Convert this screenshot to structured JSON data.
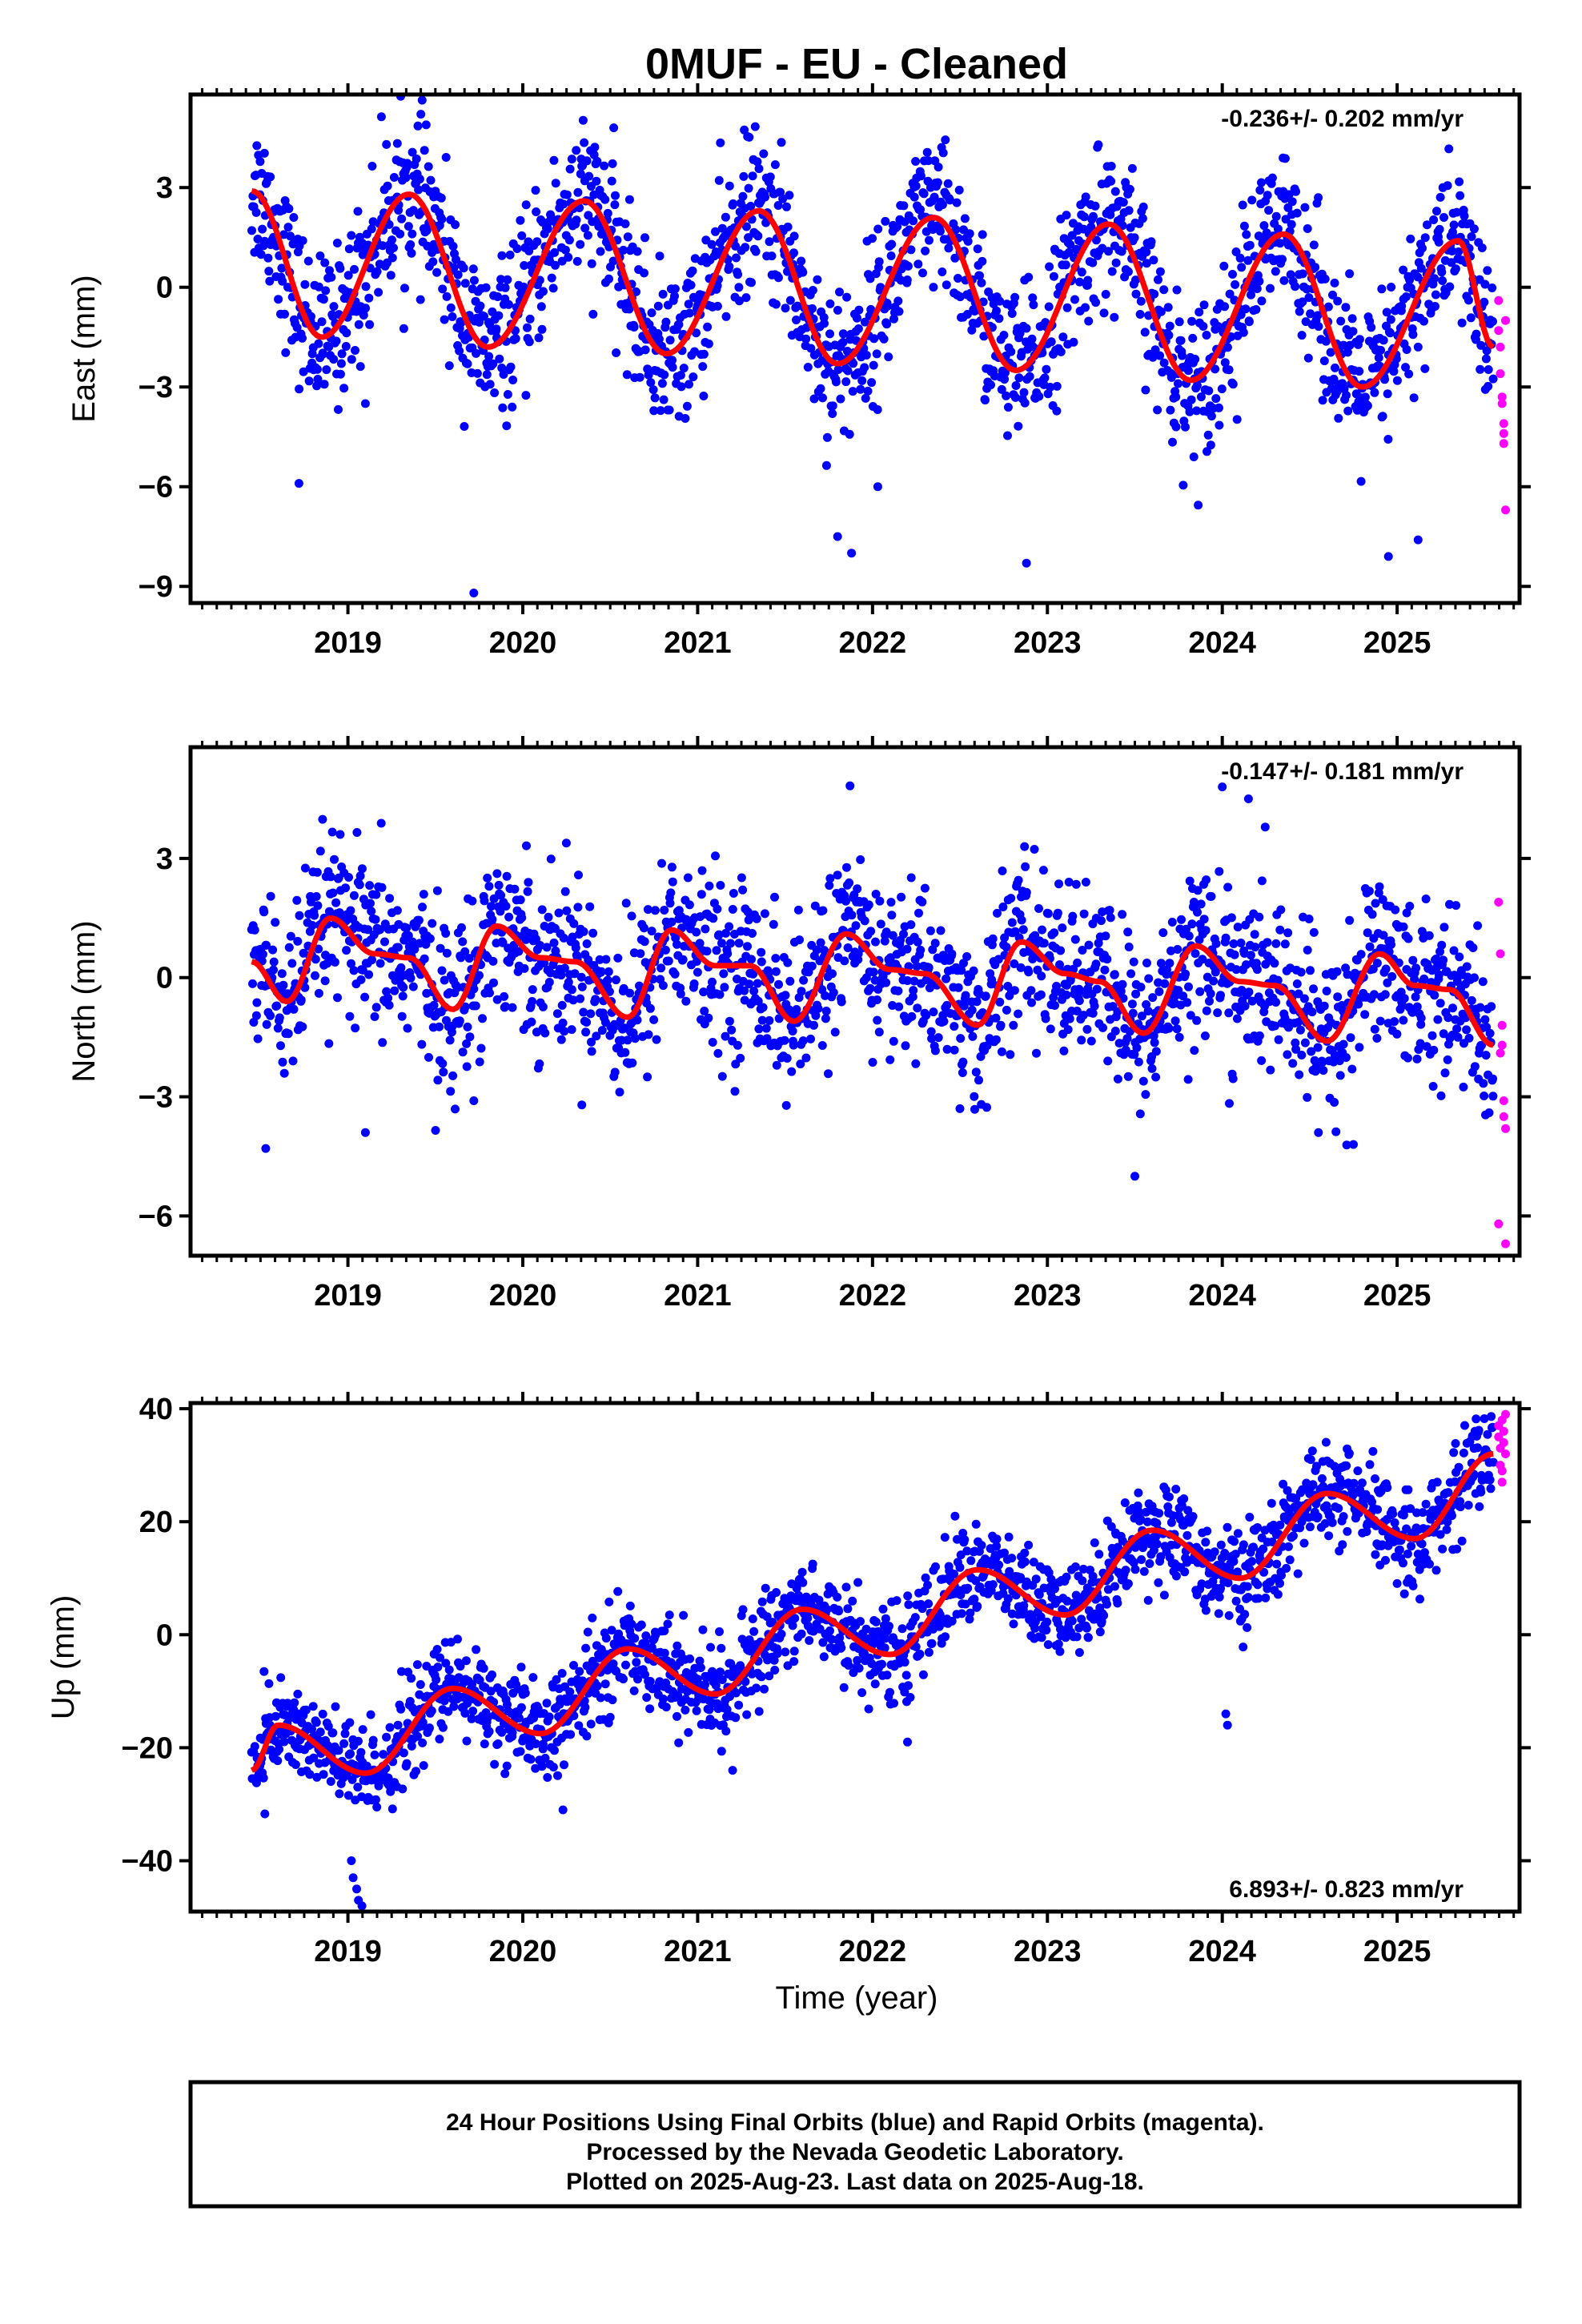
{
  "title": "0MUF  - EU - Cleaned",
  "xlabel": "Time (year)",
  "footer": {
    "line1": "24 Hour Positions Using Final Orbits (blue) and Rapid Orbits (magenta).",
    "line2": "Processed by the Nevada Geodetic Laboratory.",
    "line3": "Plotted on 2025-Aug-23. Last data on 2025-Aug-18."
  },
  "colors": {
    "final": "#0000ff",
    "rapid": "#ff00ff",
    "model": "#ff0000",
    "axes": "#000000"
  },
  "chart_data": [
    {
      "type": "scatter",
      "component": "east",
      "ylabel": "East (mm)",
      "rate": "-0.236+/- 0.202 mm/yr",
      "rate_position": "top-right",
      "xlim": [
        2018.1,
        2025.7
      ],
      "ylim": [
        -9.5,
        5.8
      ],
      "xticks": [
        2019,
        2020,
        2021,
        2022,
        2023,
        2024,
        2025
      ],
      "yticks": [
        -9,
        -6,
        -3,
        0,
        3
      ],
      "ytick_labels": [
        "−9",
        "−6",
        "−3",
        "0",
        "3"
      ],
      "grid": false,
      "data_start": 2018.45,
      "data_end": 2025.55,
      "model": {
        "x": [
          2018.45,
          2018.85,
          2019.35,
          2019.8,
          2020.35,
          2020.82,
          2021.35,
          2021.8,
          2022.35,
          2022.82,
          2023.35,
          2023.82,
          2024.35,
          2024.8,
          2025.35,
          2025.55
        ],
        "y": [
          2.9,
          -1.5,
          2.8,
          -1.8,
          2.6,
          -2.0,
          2.3,
          -2.3,
          2.1,
          -2.5,
          1.9,
          -2.8,
          1.6,
          -3.0,
          1.4,
          -1.8
        ]
      },
      "rapid_points": {
        "x": [
          2025.58,
          2025.58,
          2025.59,
          2025.59,
          2025.6,
          2025.6,
          2025.61,
          2025.61,
          2025.61,
          2025.62,
          2025.62
        ],
        "y": [
          -0.4,
          -1.3,
          -1.8,
          -2.6,
          -3.3,
          -3.5,
          -4.1,
          -4.4,
          -4.7,
          -6.7,
          -1.0
        ]
      },
      "outliers": {
        "x": [
          2018.72,
          2019.72,
          2019.1,
          2021.8,
          2021.88,
          2022.03,
          2022.88,
          2024.95,
          2025.12
        ],
        "y": [
          -5.9,
          -9.2,
          -3.5,
          -7.5,
          -8.0,
          -6.0,
          -8.3,
          -8.1,
          -7.6
        ]
      }
    },
    {
      "type": "scatter",
      "component": "north",
      "ylabel": "North (mm)",
      "rate": "-0.147+/- 0.181 mm/yr",
      "rate_position": "top-right",
      "xlim": [
        2018.1,
        2025.7
      ],
      "ylim": [
        -7.0,
        5.8
      ],
      "xticks": [
        2019,
        2020,
        2021,
        2022,
        2023,
        2024,
        2025
      ],
      "yticks": [
        -6,
        -3,
        0,
        3
      ],
      "ytick_labels": [
        "−6",
        "−3",
        "0",
        "3"
      ],
      "grid": false,
      "data_start": 2018.45,
      "data_end": 2025.55,
      "model": {
        "x": [
          2018.45,
          2018.65,
          2018.9,
          2019.15,
          2019.35,
          2019.6,
          2019.85,
          2020.1,
          2020.3,
          2020.6,
          2020.85,
          2021.1,
          2021.3,
          2021.55,
          2021.85,
          2022.1,
          2022.3,
          2022.6,
          2022.85,
          2023.1,
          2023.3,
          2023.55,
          2023.85,
          2024.1,
          2024.3,
          2024.6,
          2024.9,
          2025.1,
          2025.3,
          2025.55
        ],
        "y": [
          0.4,
          -0.6,
          1.5,
          0.6,
          0.5,
          -0.8,
          1.3,
          0.5,
          0.4,
          -1.0,
          1.2,
          0.3,
          0.3,
          -1.1,
          1.1,
          0.2,
          0.1,
          -1.2,
          0.9,
          0.1,
          -0.1,
          -1.4,
          0.8,
          -0.1,
          -0.2,
          -1.6,
          0.6,
          -0.2,
          -0.3,
          -1.7
        ]
      },
      "rapid_points": {
        "x": [
          2025.58,
          2025.59,
          2025.6,
          2025.6,
          2025.61,
          2025.61,
          2025.62,
          2025.62,
          2025.58,
          2025.59
        ],
        "y": [
          1.9,
          0.6,
          -1.2,
          -1.7,
          -3.1,
          -3.5,
          -3.8,
          -6.7,
          -6.2,
          -1.9
        ]
      },
      "outliers": {
        "x": [
          2018.53,
          2019.1,
          2019.72,
          2023.5,
          2024.0,
          2024.15,
          2024.55,
          2024.75
        ],
        "y": [
          -4.3,
          -3.9,
          -3.1,
          -5.0,
          4.8,
          4.5,
          -3.9,
          -4.2
        ]
      }
    },
    {
      "type": "scatter",
      "component": "up",
      "ylabel": "Up (mm)",
      "rate": "6.893+/- 0.823 mm/yr",
      "rate_position": "bottom-right",
      "xlim": [
        2018.1,
        2025.7
      ],
      "ylim": [
        -49,
        41
      ],
      "xticks": [
        2019,
        2020,
        2021,
        2022,
        2023,
        2024,
        2025
      ],
      "yticks": [
        -40,
        -20,
        0,
        20,
        40
      ],
      "ytick_labels": [
        "−40",
        "−20",
        "0",
        "20",
        "40"
      ],
      "grid": false,
      "data_start": 2018.45,
      "data_end": 2025.55,
      "model": {
        "x": [
          2018.45,
          2018.6,
          2019.1,
          2019.6,
          2020.1,
          2020.6,
          2021.1,
          2021.6,
          2022.1,
          2022.6,
          2023.1,
          2023.6,
          2024.1,
          2024.6,
          2025.1,
          2025.55
        ],
        "y": [
          -24,
          -16,
          -24.5,
          -9.5,
          -17.5,
          -2.5,
          -10.5,
          4.5,
          -3.5,
          11.5,
          3.5,
          18.5,
          10,
          25,
          17,
          32
        ]
      },
      "rapid_points": {
        "x": [
          2025.58,
          2025.58,
          2025.59,
          2025.59,
          2025.6,
          2025.6,
          2025.61,
          2025.61,
          2025.62,
          2025.62,
          2025.6
        ],
        "y": [
          37,
          35,
          33,
          30,
          38,
          27,
          36,
          34,
          39,
          32,
          29
        ]
      },
      "outliers": {
        "x": [
          2019.02,
          2019.03,
          2019.05,
          2019.06,
          2019.08,
          2024.02,
          2024.03,
          2020.23,
          2021.2,
          2022.2
        ],
        "y": [
          -40,
          -43,
          -45,
          -47,
          -48,
          -14,
          -16,
          -31,
          -24,
          -19
        ]
      }
    }
  ]
}
